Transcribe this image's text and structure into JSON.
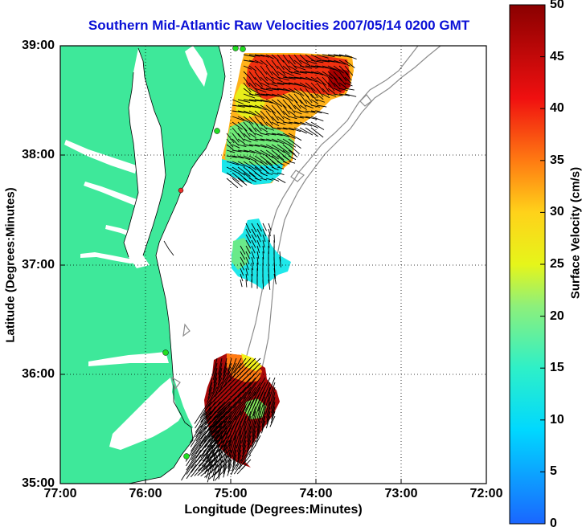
{
  "title": "Southern Mid-Atlantic Raw Velocities 2007/05/14 0200 GMT",
  "x_axis": {
    "label": "Longitude (Degrees:Minutes)",
    "ticks": [
      "77:00",
      "76:00",
      "75:00",
      "74:00",
      "73:00",
      "72:00"
    ]
  },
  "y_axis": {
    "label": "Latitude (Degrees:Minutes)",
    "ticks": [
      "39:00",
      "38:00",
      "37:00",
      "36:00",
      "35:00"
    ]
  },
  "colorbar": {
    "label": "Surface Velocity (cm/s)",
    "ticks": [
      "50",
      "45",
      "40",
      "35",
      "30",
      "25",
      "20",
      "15",
      "10",
      "5",
      "0"
    ],
    "min": 0,
    "max": 50
  },
  "colors": {
    "land": "#3ee89a",
    "ocean": "#ffffff",
    "bathymetry": "#8c8c8c",
    "title": "#0a10d6",
    "station": "#22dd22",
    "station_alt": "#e8302a"
  }
}
